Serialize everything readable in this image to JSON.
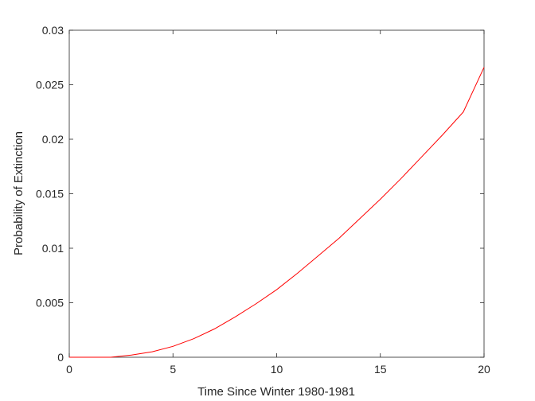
{
  "chart_data": {
    "type": "line",
    "title": "",
    "xlabel": "Time Since Winter 1980-1981",
    "ylabel": "Probability of Extinction",
    "xlim": [
      0,
      20
    ],
    "ylim": [
      0,
      0.03
    ],
    "x_ticks": [
      0,
      5,
      10,
      15,
      20
    ],
    "y_ticks": [
      0,
      0.005,
      0.01,
      0.015,
      0.02,
      0.025,
      0.03
    ],
    "x_tick_labels": [
      "0",
      "5",
      "10",
      "15",
      "20"
    ],
    "y_tick_labels": [
      "0",
      "0.005",
      "0.01",
      "0.015",
      "0.02",
      "0.025",
      "0.03"
    ],
    "grid": false,
    "series": [
      {
        "color": "#ff0000",
        "x": [
          0,
          1,
          2,
          3,
          4,
          5,
          6,
          7,
          8,
          9,
          10,
          11,
          12,
          13,
          14,
          15,
          16,
          17,
          18,
          19,
          20
        ],
        "y": [
          0,
          0.0,
          0.0,
          0.0002,
          0.0005,
          0.001,
          0.0017,
          0.0026,
          0.0037,
          0.0049,
          0.0062,
          0.0077,
          0.0093,
          0.0109,
          0.0127,
          0.0145,
          0.0164,
          0.0184,
          0.0204,
          0.0225,
          0.0266
        ]
      }
    ]
  }
}
